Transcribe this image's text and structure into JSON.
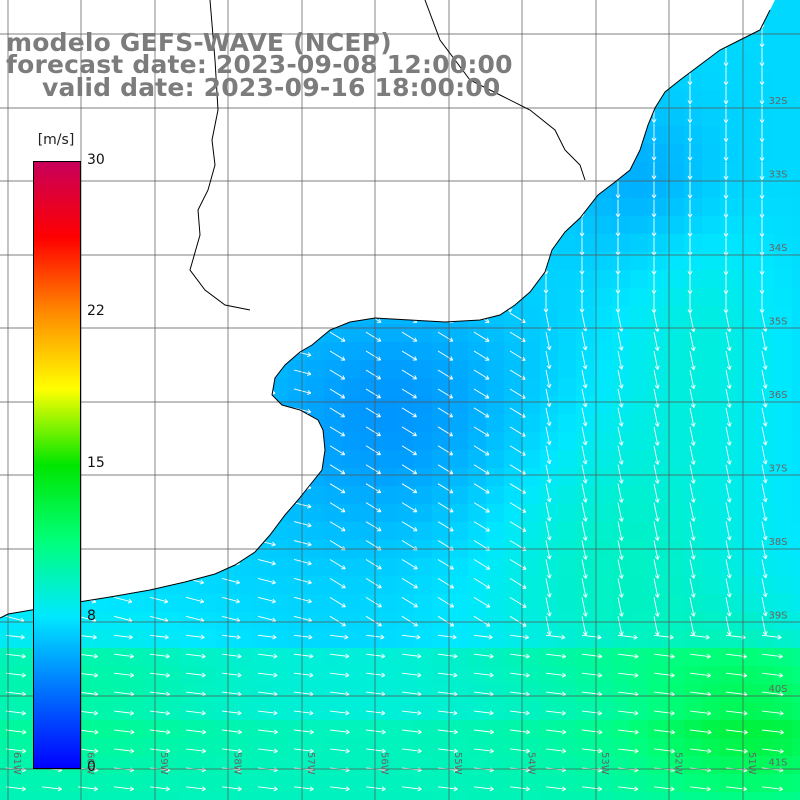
{
  "title": {
    "model": "modelo GEFS-WAVE (NCEP)",
    "forecast": "forecast date: 2023-09-08 12:00:00",
    "valid": "valid date: 2023-09-16 18:00:00"
  },
  "colorbar": {
    "unit": "[m/s]",
    "min": 0,
    "max": 30,
    "ticks": [
      "30",
      "22",
      "15",
      "8",
      "0"
    ],
    "colors": [
      "#0000ff",
      "#0070ff",
      "#00e8ff",
      "#00ff7a",
      "#00e600",
      "#ffff00",
      "#ff8c00",
      "#ff0000",
      "#c8005a"
    ]
  },
  "map": {
    "land_color": "#ffffff",
    "coastline_color": "#000000",
    "grid_color": "#555555",
    "arrow_color": "#ffffff",
    "lat_labels": [
      "32S",
      "33S",
      "34S",
      "35S",
      "36S",
      "37S",
      "38S",
      "39S",
      "40S",
      "41S"
    ],
    "lon_labels": [
      "61W",
      "60W",
      "59W",
      "58W",
      "57W",
      "56W",
      "55W",
      "54W",
      "53W",
      "52W",
      "51W"
    ]
  }
}
